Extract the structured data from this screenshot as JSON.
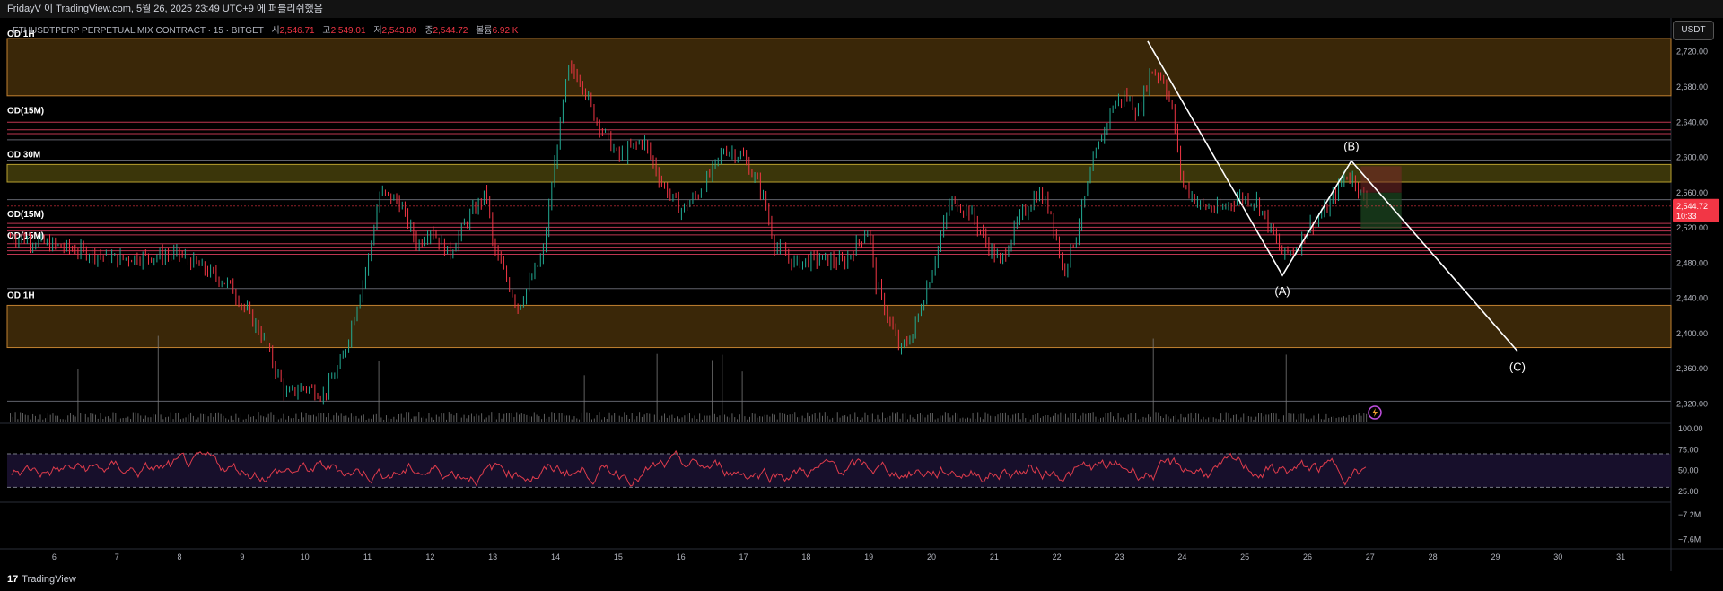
{
  "window": {
    "title": "FridayV 이 TradingView.com, 5월 26, 2025 23:49 UTC+9 에 퍼블리쉬했음"
  },
  "legend": {
    "symbol": "ETHUSDTPERP PERPETUAL MIX CONTRACT · 15 · BITGET",
    "open_label": "시",
    "open": "2,546.71",
    "high_label": "고",
    "high": "2,549.01",
    "low_label": "저",
    "low": "2,543.80",
    "close_label": "종",
    "close": "2,544.72",
    "volume_label": "볼륨",
    "volume": "6.92 K"
  },
  "currency_button": "USDT",
  "price_label": {
    "value": "2,544.72",
    "countdown": "10:33"
  },
  "zone_labels": {
    "od_1h_top": "OD 1H",
    "od_15m_1": "OD(15M)",
    "od_30m": "OD 30M",
    "od_15m_2": "OD(15M)",
    "od_15m_3": "OD(15M)",
    "od_1h_bottom": "OD 1H"
  },
  "wave_labels": {
    "a": "(A)",
    "b": "(B)",
    "c": "(C)"
  },
  "brand": {
    "logo": "17",
    "name": "TradingView"
  },
  "colors": {
    "background": "#000000",
    "up_candle": "#22ab94",
    "down_candle": "#f23645",
    "zone_orange_fill": "#3a2708",
    "zone_orange_border": "#c08030",
    "zone_yellow_fill": "#3b360a",
    "zone_yellow_border": "#b8a030",
    "zone_red_line": "#e04060",
    "rsi_line": "#e03c4c",
    "rsi_band": "#1a1130",
    "volume": "#808080",
    "current_price": "#f23645"
  },
  "chart_data": {
    "type": "candlestick",
    "symbol": "ETHUSDTPERP",
    "interval": "15",
    "y_axis": {
      "ticks": [
        "2,720.00",
        "2,680.00",
        "2,640.00",
        "2,600.00",
        "2,560.00",
        "2,520.00",
        "2,480.00",
        "2,440.00",
        "2,400.00",
        "2,360.00",
        "2,320.00"
      ],
      "tick_values": [
        2720,
        2680,
        2640,
        2600,
        2560,
        2520,
        2480,
        2440,
        2400,
        2360,
        2320
      ],
      "ylim": [
        2300,
        2735
      ]
    },
    "x_axis": {
      "ticks": [
        "6",
        "7",
        "8",
        "9",
        "10",
        "11",
        "12",
        "13",
        "14",
        "15",
        "16",
        "17",
        "18",
        "19",
        "20",
        "21",
        "22",
        "23",
        "24",
        "25",
        "26",
        "27",
        "28",
        "29",
        "30",
        "31"
      ],
      "day_range": [
        5.25,
        31.8
      ]
    },
    "price_series": [
      {
        "day": 5.3,
        "price": 2510
      },
      {
        "day": 6.0,
        "price": 2500
      },
      {
        "day": 7.0,
        "price": 2485
      },
      {
        "day": 8.0,
        "price": 2490
      },
      {
        "day": 8.8,
        "price": 2455
      },
      {
        "day": 9.3,
        "price": 2400
      },
      {
        "day": 9.7,
        "price": 2330
      },
      {
        "day": 10.0,
        "price": 2340
      },
      {
        "day": 10.3,
        "price": 2330
      },
      {
        "day": 10.6,
        "price": 2370
      },
      {
        "day": 11.0,
        "price": 2480
      },
      {
        "day": 11.2,
        "price": 2560
      },
      {
        "day": 11.5,
        "price": 2550
      },
      {
        "day": 11.8,
        "price": 2500
      },
      {
        "day": 12.0,
        "price": 2520
      },
      {
        "day": 12.3,
        "price": 2490
      },
      {
        "day": 12.6,
        "price": 2530
      },
      {
        "day": 12.9,
        "price": 2560
      },
      {
        "day": 13.0,
        "price": 2500
      },
      {
        "day": 13.4,
        "price": 2430
      },
      {
        "day": 13.8,
        "price": 2490
      },
      {
        "day": 14.0,
        "price": 2600
      },
      {
        "day": 14.2,
        "price": 2700
      },
      {
        "day": 14.4,
        "price": 2690
      },
      {
        "day": 14.6,
        "price": 2650
      },
      {
        "day": 15.0,
        "price": 2600
      },
      {
        "day": 15.4,
        "price": 2620
      },
      {
        "day": 15.7,
        "price": 2570
      },
      {
        "day": 16.0,
        "price": 2540
      },
      {
        "day": 16.3,
        "price": 2560
      },
      {
        "day": 16.7,
        "price": 2610
      },
      {
        "day": 17.0,
        "price": 2600
      },
      {
        "day": 17.3,
        "price": 2560
      },
      {
        "day": 17.5,
        "price": 2500
      },
      {
        "day": 17.8,
        "price": 2480
      },
      {
        "day": 18.2,
        "price": 2485
      },
      {
        "day": 18.6,
        "price": 2480
      },
      {
        "day": 19.0,
        "price": 2520
      },
      {
        "day": 19.1,
        "price": 2460
      },
      {
        "day": 19.3,
        "price": 2420
      },
      {
        "day": 19.5,
        "price": 2380
      },
      {
        "day": 19.7,
        "price": 2400
      },
      {
        "day": 20.0,
        "price": 2470
      },
      {
        "day": 20.3,
        "price": 2550
      },
      {
        "day": 20.6,
        "price": 2540
      },
      {
        "day": 20.9,
        "price": 2500
      },
      {
        "day": 21.1,
        "price": 2480
      },
      {
        "day": 21.4,
        "price": 2530
      },
      {
        "day": 21.7,
        "price": 2560
      },
      {
        "day": 21.9,
        "price": 2540
      },
      {
        "day": 22.1,
        "price": 2470
      },
      {
        "day": 22.3,
        "price": 2510
      },
      {
        "day": 22.6,
        "price": 2600
      },
      {
        "day": 22.9,
        "price": 2660
      },
      {
        "day": 23.1,
        "price": 2670
      },
      {
        "day": 23.3,
        "price": 2650
      },
      {
        "day": 23.5,
        "price": 2700
      },
      {
        "day": 23.7,
        "price": 2690
      },
      {
        "day": 23.85,
        "price": 2650
      },
      {
        "day": 24.0,
        "price": 2570
      },
      {
        "day": 24.3,
        "price": 2545
      },
      {
        "day": 24.6,
        "price": 2540
      },
      {
        "day": 24.9,
        "price": 2555
      },
      {
        "day": 25.2,
        "price": 2550
      },
      {
        "day": 25.4,
        "price": 2520
      },
      {
        "day": 25.6,
        "price": 2490
      },
      {
        "day": 25.8,
        "price": 2495
      },
      {
        "day": 26.0,
        "price": 2520
      },
      {
        "day": 26.3,
        "price": 2540
      },
      {
        "day": 26.6,
        "price": 2580
      },
      {
        "day": 26.75,
        "price": 2575
      },
      {
        "day": 26.95,
        "price": 2545
      }
    ],
    "zones": [
      {
        "name": "OD 1H",
        "kind": "orange",
        "from": 2735,
        "to": 2670
      },
      {
        "name": "OD(15M)",
        "kind": "red_lines",
        "from": 2640,
        "to": 2627
      },
      {
        "name": "OD 30M",
        "kind": "yellow",
        "from": 2592,
        "to": 2572
      },
      {
        "name": "OD(15M)",
        "kind": "red_lines",
        "from": 2525,
        "to": 2512
      },
      {
        "name": "OD(15M)",
        "kind": "red_lines",
        "from": 2502,
        "to": 2490
      },
      {
        "name": "OD 1H",
        "kind": "orange",
        "from": 2432,
        "to": 2384
      }
    ],
    "horizontal_levels": [
      2620,
      2597,
      2552,
      2451,
      2323
    ],
    "wave_projection": [
      {
        "label": "",
        "day": 23.45,
        "price": 2732
      },
      {
        "label": "(A)",
        "day": 25.6,
        "price": 2466
      },
      {
        "label": "(B)",
        "day": 26.7,
        "price": 2596
      },
      {
        "label": "(C)",
        "day": 29.35,
        "price": 2380
      }
    ],
    "position_box": {
      "day_from": 26.85,
      "day_to": 27.5,
      "target_price_top": 2590,
      "entry_price": 2560,
      "stop_price_bottom": 2519
    },
    "current_price": 2544.72,
    "rsi": {
      "ticks": [
        "100.00",
        "75.00",
        "50.00",
        "25.00"
      ],
      "tick_values": [
        100,
        75,
        50,
        25
      ],
      "overbought": 70,
      "oversold": 30,
      "ylim": [
        25,
        100
      ]
    },
    "cvd": {
      "ticks": [
        "−7.2M",
        "−7.6M"
      ],
      "tick_values": [
        -7.2,
        -7.6
      ],
      "ylim": [
        -7.8,
        -7.0
      ]
    }
  }
}
